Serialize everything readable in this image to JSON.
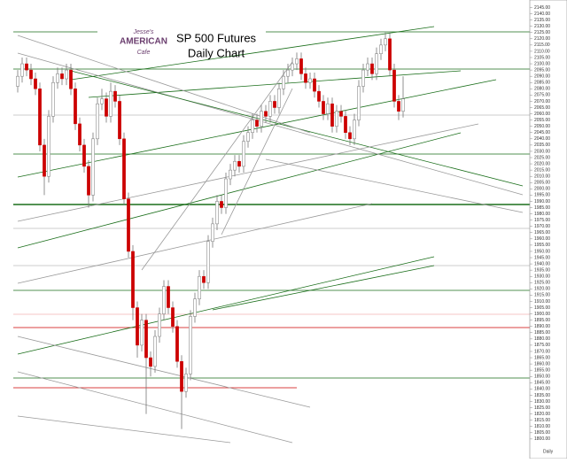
{
  "chart_data": {
    "type": "candlestick",
    "title": "SP 500 Futures",
    "subtitle": "Daily Chart",
    "logo": {
      "line1": "Jesse's",
      "line2": "AMERICAN",
      "line3": "Cafe"
    },
    "period_label": "Daily",
    "up_color": "#ffffff",
    "down_color": "#cc0000",
    "open": [
      2082,
      2090,
      2100,
      2095,
      2088,
      2080,
      2035,
      2010,
      2058,
      2085,
      2092,
      2088,
      2095,
      2080,
      2052,
      2035,
      2018,
      1995,
      2040,
      2068,
      2072,
      2058,
      2078,
      2070,
      2040,
      1992,
      1950,
      1905,
      1875,
      1895,
      1865,
      1858,
      1882,
      1900,
      1922,
      1905,
      1890,
      1862,
      1838,
      1852,
      1898,
      1912,
      1930,
      1925,
      1958,
      1972,
      1990,
      1985,
      2008,
      2015,
      2022,
      2018,
      2038,
      2045,
      2055,
      2050,
      2062,
      2058,
      2070,
      2065,
      2080,
      2090,
      2095,
      2100,
      2104,
      2092,
      2085,
      2088,
      2078,
      2070,
      2060,
      2068,
      2050,
      2062,
      2058,
      2045,
      2040,
      2055,
      2082,
      2095,
      2100,
      2092,
      2108,
      2115,
      2120,
      2095,
      2070,
      2062
    ],
    "high": [
      2095,
      2105,
      2105,
      2100,
      2093,
      2085,
      2040,
      2063,
      2090,
      2097,
      2097,
      2100,
      2100,
      2085,
      2057,
      2040,
      2023,
      2045,
      2073,
      2080,
      2077,
      2085,
      2083,
      2075,
      2045,
      1997,
      1955,
      1910,
      1900,
      1900,
      1870,
      1887,
      1905,
      1927,
      1927,
      1910,
      1895,
      1867,
      1857,
      1903,
      1917,
      1935,
      1935,
      1963,
      1977,
      1995,
      1995,
      2013,
      2020,
      2027,
      2027,
      2043,
      2050,
      2060,
      2060,
      2067,
      2067,
      2075,
      2075,
      2085,
      2095,
      2100,
      2105,
      2109,
      2109,
      2097,
      2093,
      2093,
      2083,
      2075,
      2073,
      2073,
      2067,
      2067,
      2063,
      2050,
      2060,
      2087,
      2100,
      2105,
      2105,
      2113,
      2120,
      2125,
      2125,
      2100,
      2075,
      2090
    ],
    "low": [
      2077,
      2085,
      2090,
      2083,
      2075,
      2030,
      1995,
      2005,
      2053,
      2080,
      2083,
      2083,
      2075,
      2047,
      2030,
      2013,
      1985,
      1990,
      2035,
      2063,
      2053,
      2053,
      2065,
      2035,
      1987,
      1945,
      1895,
      1865,
      1870,
      1820,
      1850,
      1853,
      1877,
      1895,
      1900,
      1885,
      1857,
      1808,
      1833,
      1847,
      1893,
      1907,
      1920,
      1920,
      1953,
      1967,
      1980,
      1980,
      2003,
      2010,
      2013,
      2013,
      2033,
      2040,
      2045,
      2045,
      2053,
      2053,
      2060,
      2060,
      2075,
      2085,
      2090,
      2095,
      2087,
      2080,
      2080,
      2073,
      2065,
      2055,
      2055,
      2045,
      2045,
      2053,
      2040,
      2035,
      2035,
      2050,
      2077,
      2090,
      2087,
      2087,
      2103,
      2110,
      2090,
      2065,
      2055,
      2057
    ],
    "close": [
      2090,
      2100,
      2095,
      2088,
      2080,
      2035,
      2010,
      2058,
      2085,
      2092,
      2088,
      2095,
      2080,
      2052,
      2035,
      2018,
      1995,
      2040,
      2068,
      2072,
      2058,
      2078,
      2070,
      2040,
      1992,
      1950,
      1905,
      1875,
      1895,
      1865,
      1858,
      1882,
      1900,
      1922,
      1905,
      1890,
      1862,
      1838,
      1852,
      1898,
      1912,
      1930,
      1925,
      1958,
      1972,
      1990,
      1985,
      2008,
      2015,
      2022,
      2018,
      2038,
      2045,
      2055,
      2050,
      2062,
      2058,
      2070,
      2065,
      2080,
      2090,
      2095,
      2100,
      2104,
      2092,
      2085,
      2088,
      2078,
      2070,
      2060,
      2068,
      2050,
      2062,
      2058,
      2045,
      2040,
      2055,
      2082,
      2095,
      2100,
      2092,
      2108,
      2115,
      2120,
      2095,
      2070,
      2062,
      2072
    ],
    "ylim": [
      1790,
      2151
    ],
    "yticks": [
      {
        "value": 2145,
        "label": "2145.00"
      },
      {
        "value": 2140,
        "label": "2140.00"
      },
      {
        "value": 2135,
        "label": "2135.00"
      },
      {
        "value": 2130,
        "label": "2130.00"
      },
      {
        "value": 2125,
        "label": "2125.00"
      },
      {
        "value": 2120,
        "label": "2120.00"
      },
      {
        "value": 2115,
        "label": "2115.00"
      },
      {
        "value": 2110,
        "label": "2110.00"
      },
      {
        "value": 2105,
        "label": "2105.00"
      },
      {
        "value": 2100,
        "label": "2100.00"
      },
      {
        "value": 2095,
        "label": "2095.00"
      },
      {
        "value": 2090,
        "label": "2090.00"
      },
      {
        "value": 2085,
        "label": "2085.00"
      },
      {
        "value": 2080,
        "label": "2080.00"
      },
      {
        "value": 2075,
        "label": "2075.00"
      },
      {
        "value": 2070,
        "label": "2070.00"
      },
      {
        "value": 2065,
        "label": "2065.00"
      },
      {
        "value": 2060,
        "label": "2060.00"
      },
      {
        "value": 2055,
        "label": "2055.00"
      },
      {
        "value": 2050,
        "label": "2050.00"
      },
      {
        "value": 2045,
        "label": "2045.00"
      },
      {
        "value": 2040,
        "label": "2040.00"
      },
      {
        "value": 2035,
        "label": "2035.00"
      },
      {
        "value": 2030,
        "label": "2030.00"
      },
      {
        "value": 2025,
        "label": "2025.00"
      },
      {
        "value": 2020,
        "label": "2020.00"
      },
      {
        "value": 2015,
        "label": "2015.00"
      },
      {
        "value": 2010,
        "label": "2010.00"
      },
      {
        "value": 2005,
        "label": "2005.00"
      },
      {
        "value": 2000,
        "label": "2000.00"
      },
      {
        "value": 1995,
        "label": "1995.00"
      },
      {
        "value": 1990,
        "label": "1990.00"
      },
      {
        "value": 1985,
        "label": "1985.00"
      },
      {
        "value": 1980,
        "label": "1980.00"
      },
      {
        "value": 1975,
        "label": "1975.00"
      },
      {
        "value": 1970,
        "label": "1970.00"
      },
      {
        "value": 1965,
        "label": "1965.00"
      },
      {
        "value": 1960,
        "label": "1960.00"
      },
      {
        "value": 1955,
        "label": "1955.00"
      },
      {
        "value": 1950,
        "label": "1950.00"
      },
      {
        "value": 1945,
        "label": "1945.00"
      },
      {
        "value": 1940,
        "label": "1940.00"
      },
      {
        "value": 1935,
        "label": "1935.00"
      },
      {
        "value": 1930,
        "label": "1930.00"
      },
      {
        "value": 1925,
        "label": "1925.00"
      },
      {
        "value": 1920,
        "label": "1920.00"
      },
      {
        "value": 1915,
        "label": "1915.00"
      },
      {
        "value": 1910,
        "label": "1910.00"
      },
      {
        "value": 1905,
        "label": "1905.00"
      },
      {
        "value": 1900,
        "label": "1900.00"
      },
      {
        "value": 1895,
        "label": "1895.00"
      },
      {
        "value": 1890,
        "label": "1890.00"
      },
      {
        "value": 1885,
        "label": "1885.00"
      },
      {
        "value": 1880,
        "label": "1880.00"
      },
      {
        "value": 1875,
        "label": "1875.00"
      },
      {
        "value": 1870,
        "label": "1870.00"
      },
      {
        "value": 1865,
        "label": "1865.00"
      },
      {
        "value": 1860,
        "label": "1860.00"
      },
      {
        "value": 1855,
        "label": "1855.00"
      },
      {
        "value": 1850,
        "label": "1850.00"
      },
      {
        "value": 1845,
        "label": "1845.00"
      },
      {
        "value": 1840,
        "label": "1840.00"
      },
      {
        "value": 1835,
        "label": "1835.00"
      },
      {
        "value": 1830,
        "label": "1830.00"
      },
      {
        "value": 1825,
        "label": "1825.00"
      },
      {
        "value": 1820,
        "label": "1820.00"
      },
      {
        "value": 1815,
        "label": "1815.00"
      },
      {
        "value": 1810,
        "label": "1810.00"
      },
      {
        "value": 1805,
        "label": "1805.00"
      },
      {
        "value": 1800,
        "label": "1800.00"
      }
    ]
  }
}
